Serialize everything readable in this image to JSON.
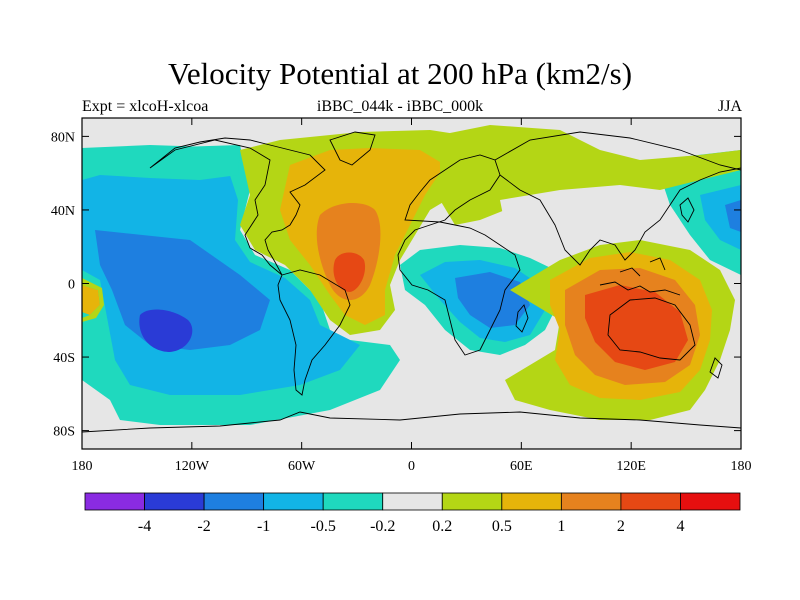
{
  "title": "Velocity Potential at 200 hPa (km2/s)",
  "subtitle_left": "Expt = xlcoH-xlcoa",
  "subtitle_center": "iBBC_044k - iBBC_000k",
  "subtitle_right": "JJA",
  "map": {
    "lon_range": [
      -180,
      180
    ],
    "lat_range": [
      -90,
      90
    ],
    "lon_ticks": [
      {
        "lon": -180,
        "label": "180"
      },
      {
        "lon": -120,
        "label": "120W"
      },
      {
        "lon": -60,
        "label": "60W"
      },
      {
        "lon": 0,
        "label": "0"
      },
      {
        "lon": 60,
        "label": "60E"
      },
      {
        "lon": 120,
        "label": "120E"
      },
      {
        "lon": 180,
        "label": "180"
      }
    ],
    "lat_ticks": [
      {
        "lat": 80,
        "label": "80N"
      },
      {
        "lat": 40,
        "label": "40N"
      },
      {
        "lat": 0,
        "label": "0"
      },
      {
        "lat": -40,
        "label": "40S"
      },
      {
        "lat": -80,
        "label": "80S"
      }
    ]
  },
  "colorbar": {
    "colors": [
      "#8a2be2",
      "#2a3bd6",
      "#1e7fe0",
      "#12b4e6",
      "#1fd9be",
      "#e6e6e6",
      "#b4d615",
      "#e6b40a",
      "#e6821e",
      "#e64814",
      "#e60f0f"
    ],
    "labels": [
      "-4",
      "-2",
      "-1",
      "-0.5",
      "-0.2",
      "0.2",
      "0.5",
      "1",
      "2",
      "4"
    ]
  }
}
